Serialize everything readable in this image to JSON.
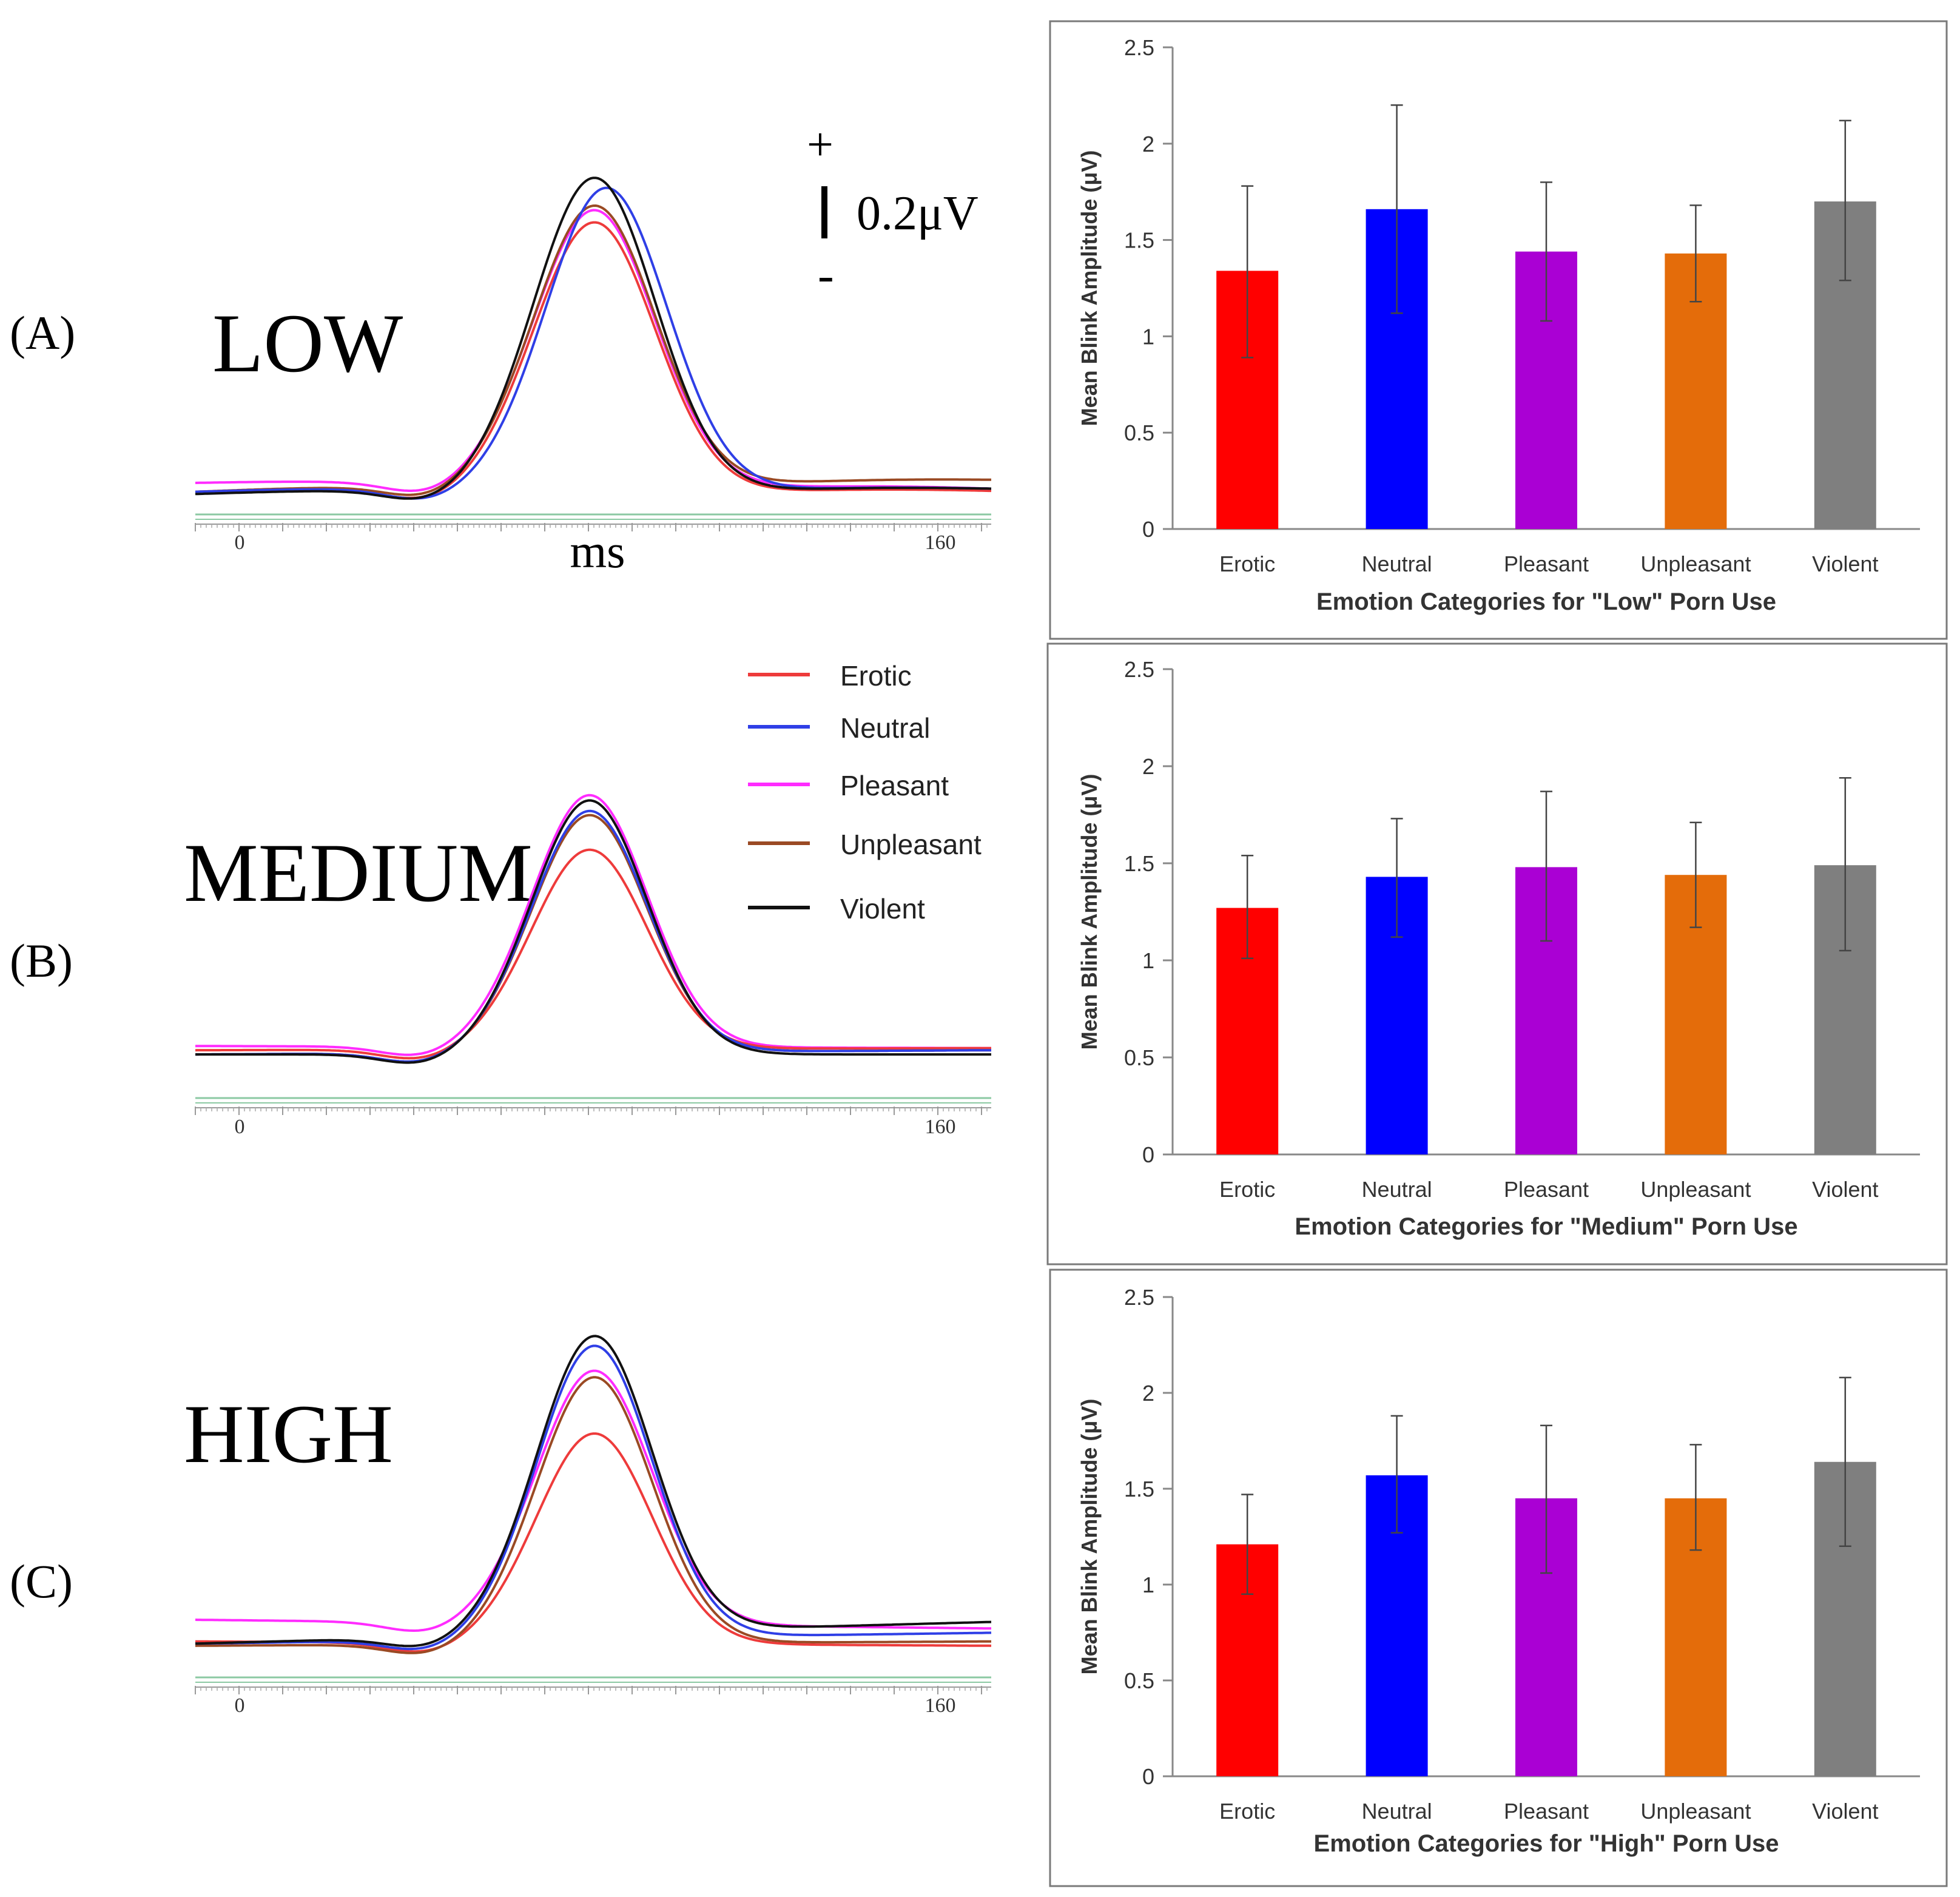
{
  "legend": {
    "entries": [
      {
        "name": "Erotic",
        "color": "#ee3b3b"
      },
      {
        "name": "Neutral",
        "color": "#2f3fe6"
      },
      {
        "name": "Pleasant",
        "color": "#ff2cff"
      },
      {
        "name": "Unpleasant",
        "color": "#9a4a24"
      },
      {
        "name": "Violent",
        "color": "#111111"
      }
    ]
  },
  "scale_bar": {
    "plus": "+",
    "value": "0.2μV",
    "minus": "-"
  },
  "waveform_panels": [
    {
      "panel_label": "(A)",
      "group_label": "LOW",
      "x_ticks": [
        "0",
        "160"
      ],
      "x_unit": "ms",
      "curves": {
        "Erotic": {
          "peak": 1.22,
          "start": 0.02,
          "end": 0.02
        },
        "Neutral": {
          "peak": 1.37,
          "start": 0.02,
          "end": 0.03,
          "peak_shift": 0.015
        },
        "Pleasant": {
          "peak": 1.25,
          "start": 0.06,
          "end": 0.03
        },
        "Unpleasant": {
          "peak": 1.27,
          "start": 0.02,
          "end": 0.07
        },
        "Violent": {
          "peak": 1.42,
          "start": 0.01,
          "end": 0.03
        }
      }
    },
    {
      "panel_label": "(B)",
      "group_label": "MEDIUM",
      "x_ticks": [
        "0",
        "160"
      ],
      "x_unit": "",
      "curves": {
        "Erotic": {
          "peak": 0.95,
          "start": 0.04,
          "end": 0.05
        },
        "Neutral": {
          "peak": 1.15,
          "start": 0.02,
          "end": 0.04
        },
        "Pleasant": {
          "peak": 1.2,
          "start": 0.06,
          "end": 0.05
        },
        "Unpleasant": {
          "peak": 1.13,
          "start": 0.02,
          "end": 0.04
        },
        "Violent": {
          "peak": 1.21,
          "start": 0.02,
          "end": 0.02
        }
      }
    },
    {
      "panel_label": "(C)",
      "group_label": "HIGH",
      "x_ticks": [
        "0",
        "160"
      ],
      "x_unit": "",
      "curves": {
        "Erotic": {
          "peak": 0.97,
          "start": 0.04,
          "end": 0.02
        },
        "Neutral": {
          "peak": 1.35,
          "start": 0.03,
          "end": 0.08
        },
        "Pleasant": {
          "peak": 1.17,
          "start": 0.14,
          "end": 0.1
        },
        "Unpleasant": {
          "peak": 1.23,
          "start": 0.02,
          "end": 0.04
        },
        "Violent": {
          "peak": 1.37,
          "start": 0.03,
          "end": 0.13
        }
      }
    }
  ],
  "chart_data": [
    {
      "type": "bar",
      "title": "",
      "xlabel": "Emotion Categories for \"Low\" Porn Use",
      "ylabel": "Mean Blink Amplitude (μV)",
      "ylim": [
        0,
        2.5
      ],
      "yticks": [
        "0",
        "0.5",
        "1",
        "1.5",
        "2",
        "2.5"
      ],
      "categories": [
        "Erotic",
        "Neutral",
        "Pleasant",
        "Unpleasant",
        "Violent"
      ],
      "values": [
        1.34,
        1.66,
        1.44,
        1.43,
        1.7
      ],
      "error_upper": [
        1.78,
        2.2,
        1.8,
        1.68,
        2.12
      ],
      "error_lower": [
        0.89,
        1.12,
        1.08,
        1.18,
        1.29
      ],
      "colors": [
        "#ff0000",
        "#0000ff",
        "#aa00d4",
        "#e46c0a",
        "#7f7f7f"
      ]
    },
    {
      "type": "bar",
      "title": "",
      "xlabel": "Emotion Categories for \"Medium\" Porn Use",
      "ylabel": "Mean Blink Amplitude (μV)",
      "ylim": [
        0,
        2.5
      ],
      "yticks": [
        "0",
        "0.5",
        "1",
        "1.5",
        "2",
        "2.5"
      ],
      "categories": [
        "Erotic",
        "Neutral",
        "Pleasant",
        "Unpleasant",
        "Violent"
      ],
      "values": [
        1.27,
        1.43,
        1.48,
        1.44,
        1.49
      ],
      "error_upper": [
        1.54,
        1.73,
        1.87,
        1.71,
        1.94
      ],
      "error_lower": [
        1.01,
        1.12,
        1.1,
        1.17,
        1.05
      ],
      "colors": [
        "#ff0000",
        "#0000ff",
        "#aa00d4",
        "#e46c0a",
        "#7f7f7f"
      ]
    },
    {
      "type": "bar",
      "title": "",
      "xlabel": "Emotion Categories for \"High\" Porn Use",
      "ylabel": "Mean Blink Amplitude (μV)",
      "ylim": [
        0,
        2.5
      ],
      "yticks": [
        "0",
        "0.5",
        "1",
        "1.5",
        "2",
        "2.5"
      ],
      "categories": [
        "Erotic",
        "Neutral",
        "Pleasant",
        "Unpleasant",
        "Violent"
      ],
      "values": [
        1.21,
        1.57,
        1.45,
        1.45,
        1.64
      ],
      "error_upper": [
        1.47,
        1.88,
        1.83,
        1.73,
        2.08
      ],
      "error_lower": [
        0.95,
        1.27,
        1.06,
        1.18,
        1.2
      ],
      "colors": [
        "#ff0000",
        "#0000ff",
        "#aa00d4",
        "#e46c0a",
        "#7f7f7f"
      ]
    }
  ]
}
